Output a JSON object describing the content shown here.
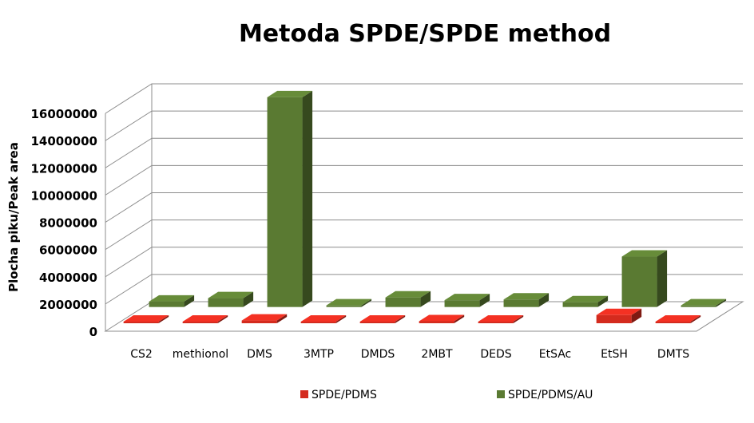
{
  "chart_data": {
    "type": "bar",
    "title": "Metoda SPDE/SPDE method",
    "ylabel": "Plocha piku/Peak area",
    "xlabel": "",
    "ylim": [
      0,
      16000000
    ],
    "yticks": [
      0,
      2000000,
      4000000,
      6000000,
      8000000,
      10000000,
      12000000,
      14000000,
      16000000
    ],
    "categories": [
      "CS2",
      "methionol",
      "DMS",
      "3MTP",
      "DMDS",
      "2MBT",
      "DEDS",
      "EtSAc",
      "EtSH",
      "DMTS"
    ],
    "series": [
      {
        "name": "SPDE/PDMS",
        "color": "#d42b1e",
        "values": [
          50000,
          50000,
          200000,
          30000,
          40000,
          150000,
          60000,
          0,
          600000,
          30000
        ]
      },
      {
        "name": "SPDE/PDMS/AU",
        "color": "#5a7a32",
        "values": [
          400000,
          650000,
          15400000,
          50000,
          700000,
          500000,
          550000,
          350000,
          3700000,
          100000
        ]
      }
    ],
    "grid": true,
    "legend": "bottom",
    "projection": "3d"
  }
}
